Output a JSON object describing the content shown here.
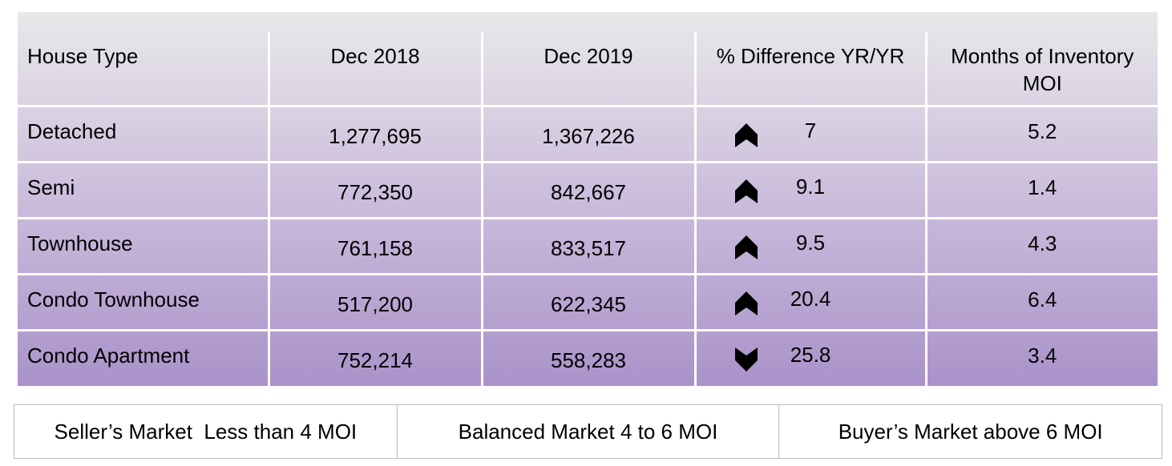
{
  "table": {
    "headers": {
      "house_type": "House Type",
      "dec_2018": "Dec 2018",
      "dec_2019": "Dec 2019",
      "difference": "% Difference YR/YR",
      "moi_line1": "Months of Inventory",
      "moi_line2": "MOI"
    },
    "rows": [
      {
        "type": "Detached",
        "dec_2018": "1,277,695",
        "dec_2019": "1,367,226",
        "direction": "up",
        "difference": "7",
        "moi": "5.2"
      },
      {
        "type": "Semi",
        "dec_2018": "772,350",
        "dec_2019": "842,667",
        "direction": "up",
        "difference": "9.1",
        "moi": "1.4"
      },
      {
        "type": "Townhouse",
        "dec_2018": "761,158",
        "dec_2019": "833,517",
        "direction": "up",
        "difference": "9.5",
        "moi": "4.3"
      },
      {
        "type": "Condo Townhouse",
        "dec_2018": "517,200",
        "dec_2019": "622,345",
        "direction": "up",
        "difference": "20.4",
        "moi": "6.4"
      },
      {
        "type": "Condo  Apartment",
        "dec_2018": "752,214",
        "dec_2019": "558,283",
        "direction": "down",
        "difference": "25.8",
        "moi": "3.4"
      }
    ]
  },
  "legend": {
    "sellers": "Seller’s Market  Less than 4 MOI",
    "balanced": "Balanced Market 4 to 6 MOI",
    "buyers": "Buyer’s Market above 6 MOI"
  },
  "icons": {
    "up": "arrow-up-icon",
    "down": "arrow-down-icon"
  }
}
